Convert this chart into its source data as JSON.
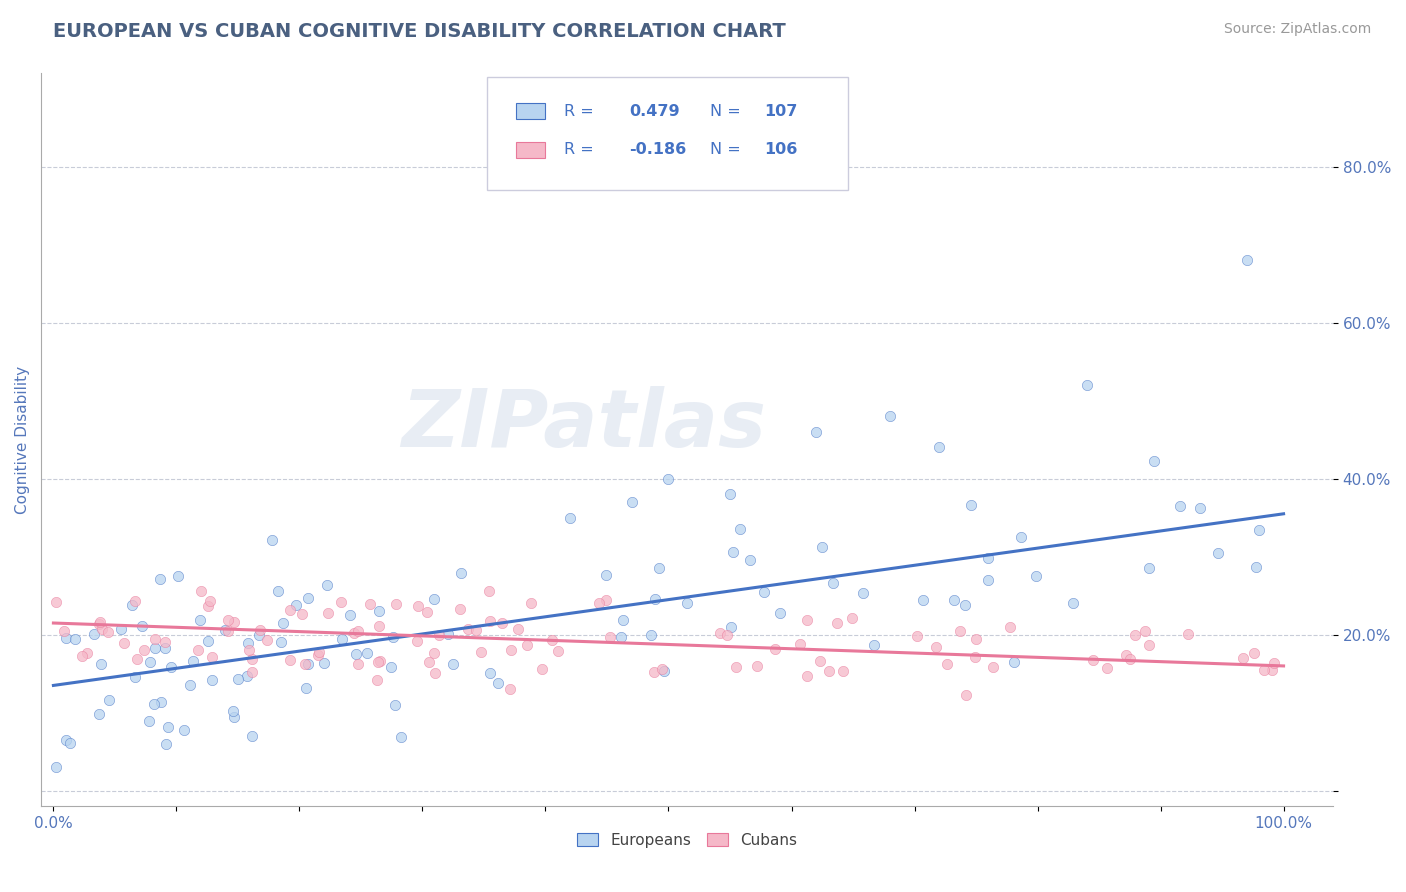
{
  "title": "EUROPEAN VS CUBAN COGNITIVE DISABILITY CORRELATION CHART",
  "source": "Source: ZipAtlas.com",
  "ylabel": "Cognitive Disability",
  "watermark": "ZIPatlas",
  "european_color": "#b8d4f0",
  "cuban_color": "#f5b8c8",
  "european_line_color": "#4472c4",
  "cuban_line_color": "#e8789a",
  "background_color": "#ffffff",
  "grid_color": "#c8ccd8",
  "title_color": "#4a6080",
  "tick_label_color": "#5577bb",
  "tick_fontsize": 11,
  "title_fontsize": 14,
  "ylabel_fontsize": 11,
  "source_fontsize": 10,
  "legend_text_color": "#4472c4",
  "eu_r": "0.479",
  "eu_n": "107",
  "cu_r": "-0.186",
  "cu_n": "106"
}
